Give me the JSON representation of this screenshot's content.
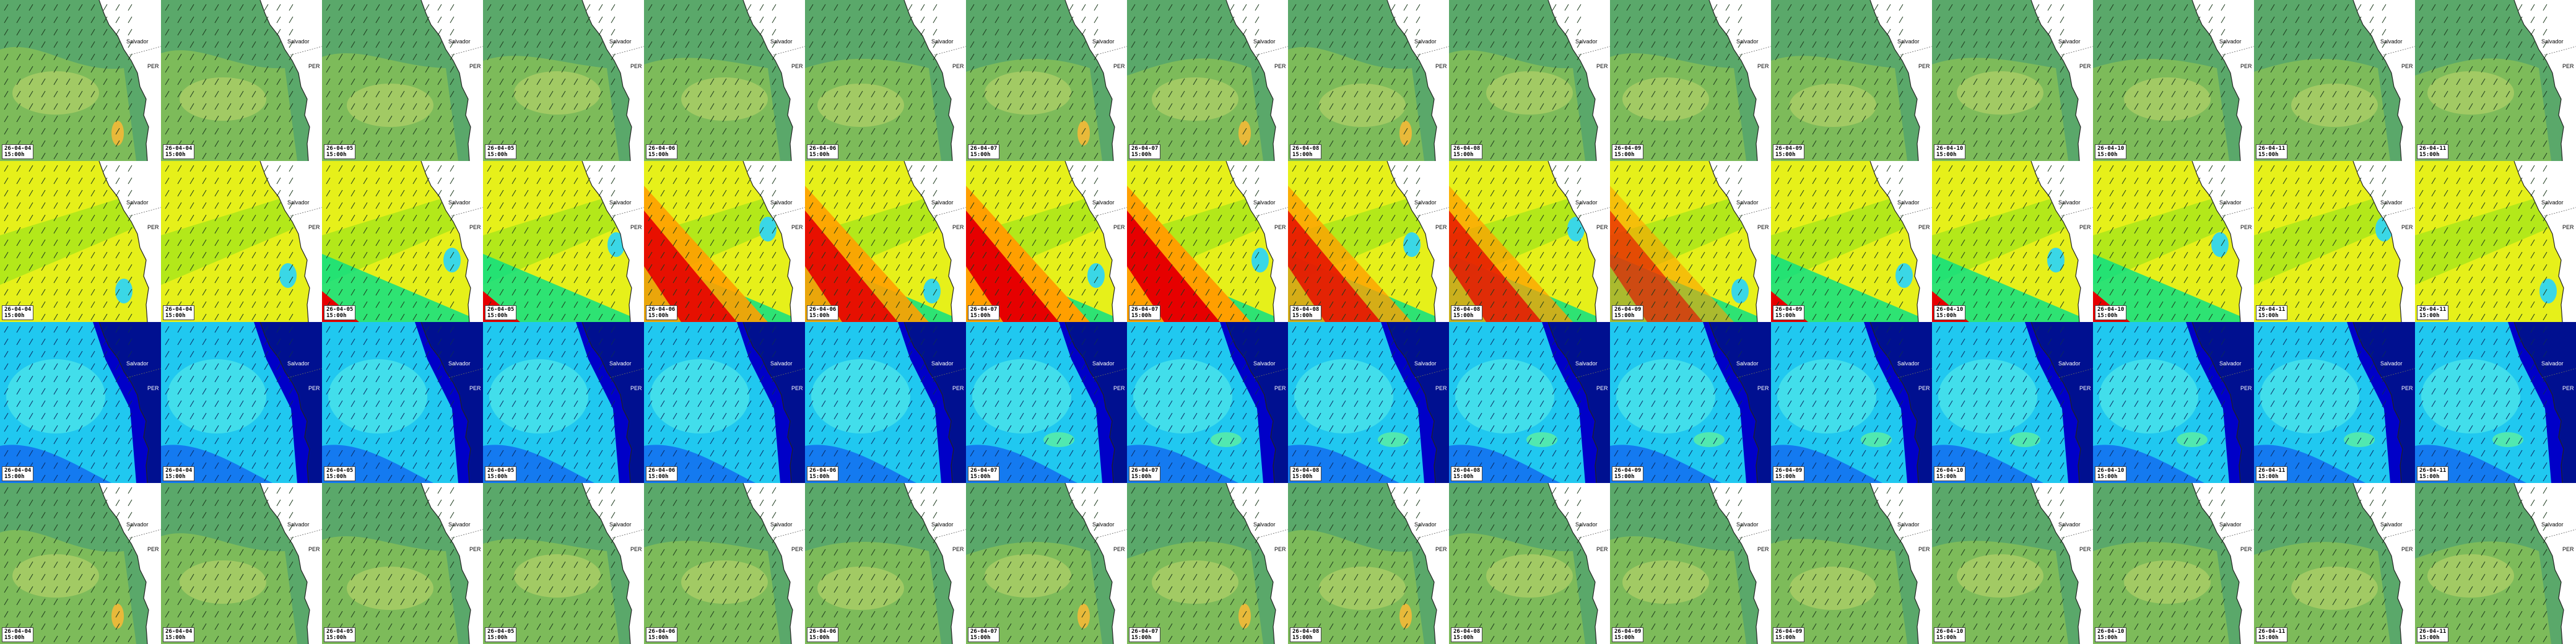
{
  "map_type": "marine forecast mosaic (4 parameter rows x 16 time steps)",
  "place_labels": {
    "city": "Salvador",
    "state": "PER"
  },
  "rows": [
    {
      "id": "row-1",
      "palette": {
        "sea_dark": "#5aa86a",
        "sea_mid": "#7dbb5a",
        "sea_light": "#a8cc66",
        "spot": "#e8b93a"
      },
      "times": [
        "26-04-04",
        "26-04-04",
        "26-04-05",
        "26-04-05",
        "26-04-06",
        "26-04-06",
        "26-04-07",
        "26-04-07",
        "26-04-08",
        "26-04-08",
        "26-04-09",
        "26-04-09",
        "26-04-10",
        "26-04-10",
        "26-04-11",
        "26-04-11"
      ],
      "hours": [
        "15:00h",
        "15:00h",
        "15:00h",
        "15:00h",
        "15:00h",
        "15:00h",
        "15:00h",
        "15:00h",
        "15:00h",
        "15:00h",
        "15:00h",
        "15:00h",
        "15:00h",
        "15:00h",
        "15:00h",
        "15:00h"
      ]
    },
    {
      "id": "row-2",
      "palette": {
        "low": "#00e08a",
        "mid_low": "#a6e61a",
        "mid": "#e6f01a",
        "high": "#ff9f00",
        "peak": "#e60000",
        "ice": "#3ad7e6"
      },
      "times": [
        "26-04-04",
        "26-04-04",
        "26-04-05",
        "26-04-05",
        "26-04-06",
        "26-04-06",
        "26-04-07",
        "26-04-07",
        "26-04-08",
        "26-04-08",
        "26-04-09",
        "26-04-09",
        "26-04-10",
        "26-04-10",
        "26-04-11",
        "26-04-11"
      ],
      "hours": [
        "15:00h",
        "15:00h",
        "15:00h",
        "15:00h",
        "15:00h",
        "15:00h",
        "15:00h",
        "15:00h",
        "15:00h",
        "15:00h",
        "15:00h",
        "15:00h",
        "15:00h",
        "15:00h",
        "15:00h",
        "15:00h"
      ]
    },
    {
      "id": "row-3",
      "palette": {
        "deep": "#0000c8",
        "blue": "#1060f0",
        "cyan": "#20c8f0",
        "light": "#5ff0e8",
        "green": "#5ef0a0"
      },
      "times": [
        "26-04-04",
        "26-04-04",
        "26-04-05",
        "26-04-05",
        "26-04-06",
        "26-04-06",
        "26-04-07",
        "26-04-07",
        "26-04-08",
        "26-04-08",
        "26-04-09",
        "26-04-09",
        "26-04-10",
        "26-04-10",
        "26-04-11",
        "26-04-11"
      ],
      "hours": [
        "15:00h",
        "15:00h",
        "15:00h",
        "15:00h",
        "15:00h",
        "15:00h",
        "15:00h",
        "15:00h",
        "15:00h",
        "15:00h",
        "15:00h",
        "15:00h",
        "15:00h",
        "15:00h",
        "15:00h",
        "15:00h"
      ]
    },
    {
      "id": "row-4",
      "palette": {
        "sea_dark": "#5aa86a",
        "sea_mid": "#7dbb5a",
        "sea_light": "#a8cc66",
        "spot": "#e8b93a"
      },
      "times": [
        "26-04-04",
        "26-04-04",
        "26-04-05",
        "26-04-05",
        "26-04-06",
        "26-04-06",
        "26-04-07",
        "26-04-07",
        "26-04-08",
        "26-04-08",
        "26-04-09",
        "26-04-09",
        "26-04-10",
        "26-04-10",
        "26-04-11",
        "26-04-11"
      ],
      "hours": [
        "15:00h",
        "15:00h",
        "15:00h",
        "15:00h",
        "15:00h",
        "15:00h",
        "15:00h",
        "15:00h",
        "15:00h",
        "15:00h",
        "15:00h",
        "15:00h",
        "15:00h",
        "15:00h",
        "15:00h",
        "15:00h"
      ]
    }
  ],
  "row2_warm_band_strength": [
    0.05,
    0.05,
    0.25,
    0.3,
    0.9,
    0.9,
    1.0,
    1.0,
    0.8,
    0.75,
    0.6,
    0.5,
    0.3,
    0.25,
    0.2,
    0.15
  ]
}
